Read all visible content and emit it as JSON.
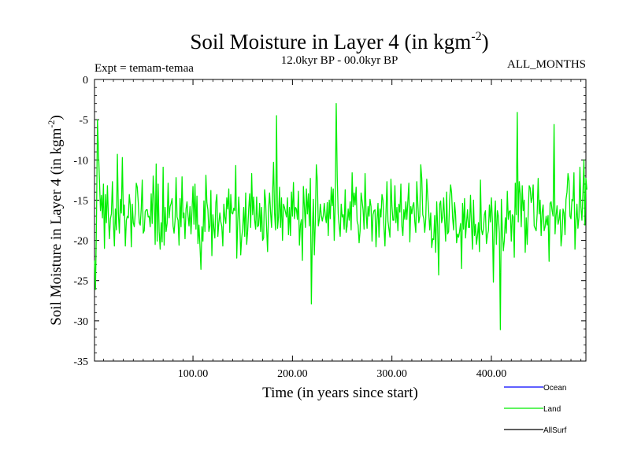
{
  "chart_data": {
    "type": "line",
    "title": "Soil Moisture in Layer 4 (in kgm",
    "title_sup": "-2",
    "title_close": ")",
    "subtitle": "12.0kyr BP - 00.0kyr BP",
    "left_note": "Expt = temam-temaa",
    "right_note": "ALL_MONTHS",
    "xlabel": "Time (in years since start)",
    "ylabel": "Soil Moisture in Layer 4 (in kgm",
    "ylabel_sup": "-2",
    "ylabel_close": ")",
    "xlim": [
      1,
      495
    ],
    "ylim": [
      -35,
      0
    ],
    "x_ticks": [
      {
        "value": 100,
        "label": "100.00"
      },
      {
        "value": 200,
        "label": "200.00"
      },
      {
        "value": 300,
        "label": "300.00"
      },
      {
        "value": 400,
        "label": "400.00"
      }
    ],
    "y_ticks": [
      {
        "value": 0,
        "label": "0"
      },
      {
        "value": -5,
        "label": "-5"
      },
      {
        "value": -10,
        "label": "-10"
      },
      {
        "value": -15,
        "label": "-15"
      },
      {
        "value": -20,
        "label": "-20"
      },
      {
        "value": -25,
        "label": "-25"
      },
      {
        "value": -30,
        "label": "-30"
      },
      {
        "value": -35,
        "label": "-35"
      }
    ],
    "legend": [
      {
        "name": "Ocean",
        "color": "#0000ff"
      },
      {
        "name": "Land",
        "color": "#00ee00"
      },
      {
        "name": "AllSurf",
        "color": "#000000"
      }
    ],
    "series": [
      {
        "name": "Land",
        "color": "#00ee00",
        "x_start": 1,
        "x_step": 1,
        "values": [
          -22.5,
          -26.1,
          -17.4,
          -5.0,
          -8.9,
          -12.6,
          -16.3,
          -14.4,
          -17.2,
          -13.0,
          -21.0,
          -14.3,
          -17.8,
          -13.2,
          -17.1,
          -19.8,
          -17.3,
          -16.7,
          -12.7,
          -17.8,
          -20.7,
          -16.1,
          -18.7,
          -9.3,
          -16.6,
          -19.1,
          -14.9,
          -16.6,
          -9.7,
          -16.9,
          -15.6,
          -20.7,
          -17.5,
          -17.0,
          -17.2,
          -14.3,
          -15.6,
          -20.8,
          -15.5,
          -17.8,
          -18.3,
          -16.5,
          -12.9,
          -13.4,
          -15.3,
          -17.8,
          -18.1,
          -16.0,
          -12.5,
          -19.1,
          -18.8,
          -16.4,
          -16.2,
          -16.2,
          -17.1,
          -17.0,
          -18.3,
          -14.2,
          -17.9,
          -12.0,
          -14.7,
          -20.5,
          -10.5,
          -20.1,
          -13.0,
          -18.9,
          -21.1,
          -17.8,
          -20.2,
          -10.9,
          -20.6,
          -15.9,
          -18.9,
          -17.9,
          -12.9,
          -17.2,
          -15.8,
          -15.4,
          -14.8,
          -18.2,
          -19.1,
          -17.5,
          -12.2,
          -17.1,
          -17.5,
          -20.6,
          -14.8,
          -18.3,
          -12.1,
          -17.2,
          -16.6,
          -19.8,
          -16.1,
          -15.2,
          -16.9,
          -18.2,
          -15.8,
          -19.2,
          -16.4,
          -13.3,
          -18.0,
          -13.0,
          -18.6,
          -14.5,
          -20.4,
          -18.1,
          -20.6,
          -23.6,
          -18.3,
          -20.1,
          -15.1,
          -18.9,
          -11.9,
          -15.3,
          -16.2,
          -18.9,
          -18.2,
          -13.8,
          -21.9,
          -16.8,
          -18.5,
          -19.7,
          -15.3,
          -14.3,
          -19.5,
          -17.8,
          -16.6,
          -17.7,
          -18.3,
          -20.7,
          -15.5,
          -17.1,
          -17.9,
          -14.7,
          -16.1,
          -13.6,
          -19.0,
          -14.3,
          -16.6,
          -16.7,
          -16.0,
          -16.3,
          -10.7,
          -22.2,
          -17.7,
          -14.6,
          -17.4,
          -21.8,
          -19.6,
          -18.5,
          -15.9,
          -19.5,
          -14.1,
          -20.5,
          -18.8,
          -16.1,
          -14.2,
          -18.4,
          -11.7,
          -16.8,
          -14.6,
          -17.5,
          -18.6,
          -14.6,
          -18.3,
          -18.1,
          -15.4,
          -18.9,
          -15.9,
          -20.0,
          -19.7,
          -13.7,
          -15.1,
          -18.5,
          -21.4,
          -16.1,
          -14.1,
          -16.5,
          -18.4,
          -14.2,
          -10.3,
          -16.6,
          -18.7,
          -4.5,
          -18.5,
          -17.1,
          -13.4,
          -18.4,
          -14.7,
          -20.0,
          -15.5,
          -15.9,
          -16.5,
          -17.1,
          -14.7,
          -19.3,
          -15.9,
          -19.4,
          -14.0,
          -17.0,
          -12.8,
          -17.3,
          -15.9,
          -16.1,
          -17.4,
          -13.9,
          -20.6,
          -18.1,
          -17.4,
          -22.5,
          -13.3,
          -15.8,
          -18.4,
          -13.6,
          -16.7,
          -14.2,
          -18.2,
          -12.3,
          -27.9,
          -19.1,
          -14.9,
          -21.8,
          -17.6,
          -10.6,
          -12.5,
          -18.2,
          -17.4,
          -15.5,
          -16.9,
          -17.6,
          -16.9,
          -15.4,
          -16.9,
          -17.8,
          -15.3,
          -19.4,
          -15.0,
          -17.3,
          -13.4,
          -15.7,
          -13.6,
          -20.0,
          -15.5,
          -3.0,
          -12.1,
          -16.7,
          -18.2,
          -19.5,
          -15.5,
          -17.1,
          -16.8,
          -18.6,
          -13.7,
          -19.0,
          -18.2,
          -16.1,
          -17.5,
          -15.2,
          -18.7,
          -11.6,
          -15.8,
          -14.1,
          -15.6,
          -13.4,
          -17.6,
          -18.1,
          -20.3,
          -18.8,
          -14.1,
          -15.1,
          -16.2,
          -18.6,
          -11.7,
          -16.4,
          -18.5,
          -15.8,
          -17.0,
          -14.9,
          -15.8,
          -20.1,
          -16.8,
          -16.3,
          -16.2,
          -20.8,
          -17.5,
          -15.4,
          -19.6,
          -16.1,
          -17.1,
          -14.3,
          -15.0,
          -18.4,
          -20.7,
          -16.6,
          -12.7,
          -17.6,
          -18.6,
          -19.6,
          -12.4,
          -15.7,
          -17.5,
          -17.5,
          -13.2,
          -17.8,
          -15.9,
          -18.8,
          -15.5,
          -16.5,
          -13.0,
          -18.2,
          -19.4,
          -16.2,
          -17.4,
          -15.2,
          -17.4,
          -15.2,
          -12.9,
          -20.2,
          -15.8,
          -16.7,
          -15.7,
          -15.3,
          -17.7,
          -19.0,
          -12.7,
          -15.4,
          -17.8,
          -17.0,
          -10.6,
          -12.3,
          -16.8,
          -17.3,
          -19.0,
          -17.3,
          -12.4,
          -14.5,
          -16.5,
          -18.7,
          -16.6,
          -20.9,
          -19.8,
          -19.9,
          -16.9,
          -21.5,
          -15.2,
          -18.4,
          -24.3,
          -15.5,
          -15.1,
          -17.8,
          -17.1,
          -14.7,
          -17.5,
          -20.1,
          -14.0,
          -19.2,
          -18.9,
          -15.0,
          -13.1,
          -14.1,
          -17.2,
          -18.7,
          -15.3,
          -16.8,
          -20.3,
          -19.2,
          -19.6,
          -18.9,
          -17.9,
          -23.5,
          -15.4,
          -18.6,
          -14.8,
          -19.7,
          -17.8,
          -16.2,
          -18.4,
          -18.4,
          -14.4,
          -18.1,
          -21.1,
          -15.0,
          -19.4,
          -18.0,
          -20.5,
          -19.4,
          -17.8,
          -21.4,
          -12.5,
          -18.6,
          -19.3,
          -18.6,
          -16.8,
          -16.3,
          -20.4,
          -19.4,
          -18.8,
          -15.6,
          -17.7,
          -14.7,
          -17.5,
          -25.2,
          -17.3,
          -15.1,
          -20.5,
          -16.3,
          -17.0,
          -19.1,
          -31.1,
          -14.9,
          -18.6,
          -21.3,
          -20.0,
          -17.2,
          -19.1,
          -13.9,
          -17.4,
          -16.4,
          -16.3,
          -20.1,
          -16.8,
          -17.1,
          -22.1,
          -12.9,
          -16.8,
          -4.1,
          -17.7,
          -12.7,
          -14.2,
          -18.3,
          -13.2,
          -16.3,
          -15.0,
          -21.5,
          -17.2,
          -20.5,
          -16.6,
          -13.2,
          -13.5,
          -15.3,
          -14.7,
          -13.1,
          -18.2,
          -18.5,
          -18.8,
          -16.7,
          -12.3,
          -16.7,
          -15.0,
          -19.4,
          -16.5,
          -15.6,
          -18.8,
          -18.3,
          -17.0,
          -18.1,
          -16.9,
          -22.6,
          -15.4,
          -15.2,
          -16.3,
          -17.0,
          -5.6,
          -19.2,
          -16.9,
          -15.7,
          -18.0,
          -17.4,
          -16.2,
          -20.7,
          -19.3,
          -16.1,
          -16.6,
          -19.3,
          -14.9,
          -14.0,
          -11.7,
          -12.6,
          -17.0,
          -17.3,
          -14.9,
          -15.1,
          -11.6,
          -21.1,
          -17.5,
          -15.5,
          -18.5,
          -17.1,
          -10.9,
          -15.9,
          -17.5,
          -14.2,
          -10.0,
          -18.1,
          -12.3,
          -13.7
        ]
      }
    ]
  }
}
